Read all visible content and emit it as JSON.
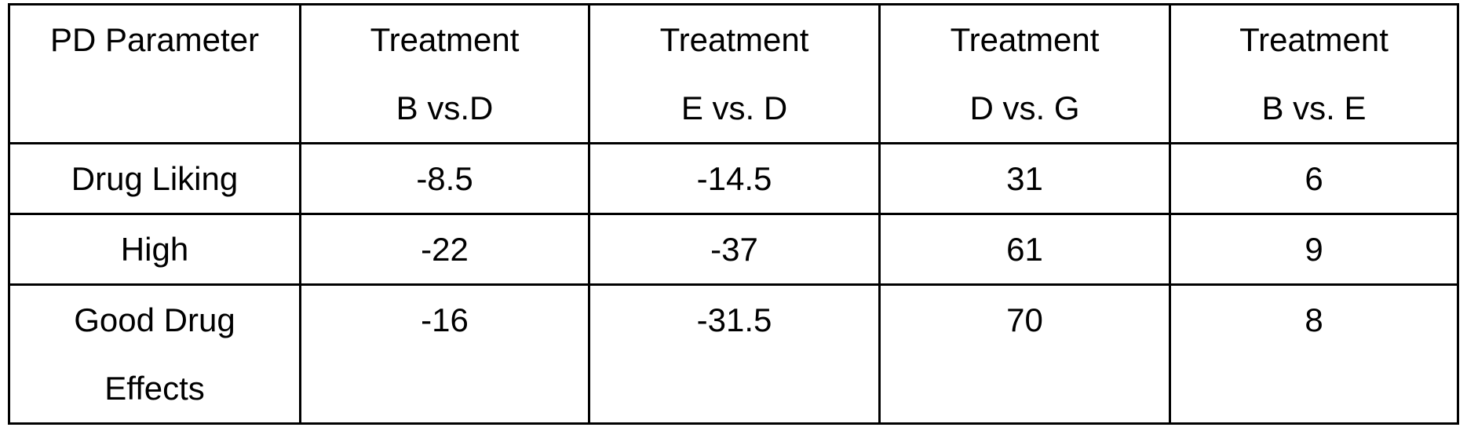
{
  "table": {
    "headers": [
      [
        "PD Parameter"
      ],
      [
        "Treatment",
        "B vs.D"
      ],
      [
        "Treatment",
        "E vs. D"
      ],
      [
        "Treatment",
        "D vs. G"
      ],
      [
        "Treatment",
        "B vs. E"
      ]
    ],
    "rows": [
      {
        "parameter": [
          "Drug Liking"
        ],
        "values": [
          "-8.5",
          "-14.5",
          "31",
          "6"
        ]
      },
      {
        "parameter": [
          "High"
        ],
        "values": [
          "-22",
          "-37",
          "61",
          "9"
        ]
      },
      {
        "parameter": [
          "Good Drug",
          "Effects"
        ],
        "values": [
          "-16",
          "-31.5",
          "70",
          "8"
        ]
      }
    ]
  }
}
